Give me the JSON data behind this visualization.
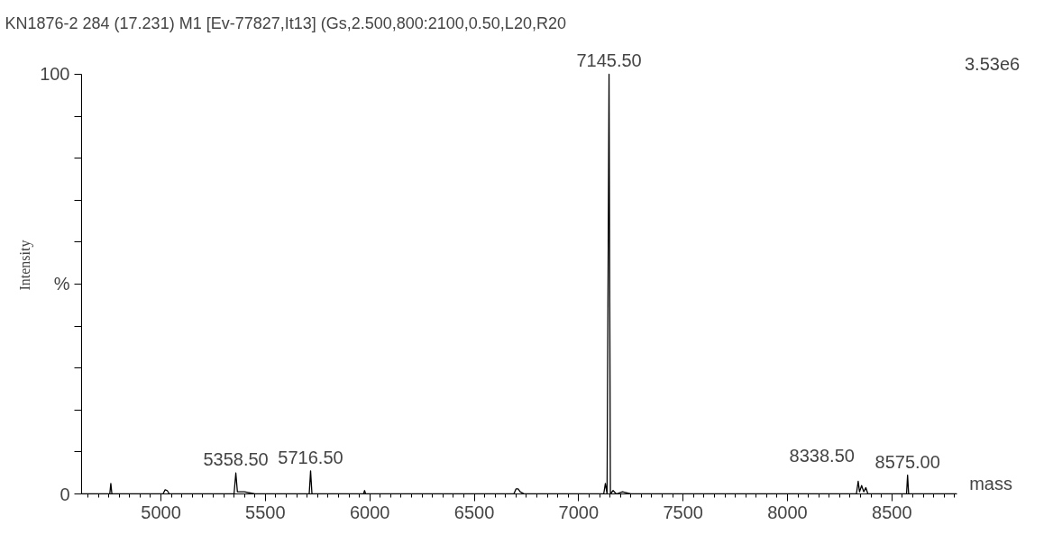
{
  "chart_data": {
    "type": "line",
    "title": "KN1876-2  284 (17.231) M1 [Ev-77827,It13] (Gs,2.500,800:2100,0.50,L20,R20",
    "xlabel": "mass",
    "ylabel": "Intensity",
    "x": [
      4620,
      4755,
      4760,
      4765,
      5010,
      5020,
      5030,
      5040,
      5350,
      5358.5,
      5366,
      5400,
      5450,
      5710,
      5716.5,
      5723,
      5970,
      5975,
      5980,
      6690,
      6700,
      6710,
      6720,
      6740,
      7120,
      7128,
      7136,
      7145.5,
      7152,
      7165,
      7180,
      7210,
      7250,
      8330,
      8338.5,
      8345,
      8355,
      8365,
      8375,
      8385,
      8570,
      8575,
      8580,
      8810
    ],
    "series": [
      {
        "color": "#000000",
        "values": [
          0,
          0,
          2.5,
          0,
          0,
          1,
          0.8,
          0,
          0,
          5,
          0.5,
          0.5,
          0,
          0,
          5.5,
          0,
          0,
          0.8,
          0,
          0,
          1.2,
          1.2,
          0.5,
          0,
          0,
          2.5,
          0,
          100,
          0,
          0.8,
          0,
          0.5,
          0,
          0,
          3,
          0.5,
          2,
          0.5,
          1.5,
          0,
          0,
          4.5,
          0,
          0
        ]
      }
    ],
    "annotations": [
      {
        "text": "7145.50",
        "x": 7145.5,
        "y": 100
      },
      {
        "text": "5358.50",
        "x": 5358.5,
        "y": 5
      },
      {
        "text": "5716.50",
        "x": 5716.5,
        "y": 5.5
      },
      {
        "text": "8338.50",
        "x": 8338.5,
        "y": 3
      },
      {
        "text": "8575.00",
        "x": 8575,
        "y": 4.5
      },
      "3.53e6"
    ],
    "xlim": [
      4620,
      8810
    ],
    "ylim": [
      0,
      100
    ],
    "xticks": [
      5000,
      5500,
      6000,
      6500,
      7000,
      7500,
      8000,
      8500
    ],
    "yticks": [
      0,
      {
        "value": 10,
        "label": null
      },
      {
        "value": 20,
        "label": null
      },
      {
        "value": 30,
        "label": null
      },
      {
        "value": 40,
        "label": null
      },
      {
        "value": 50,
        "label": "%"
      },
      {
        "value": 60,
        "label": null
      },
      {
        "value": 70,
        "label": null
      },
      {
        "value": 80,
        "label": null
      },
      {
        "value": 90,
        "label": null
      },
      100
    ],
    "grid": false
  }
}
